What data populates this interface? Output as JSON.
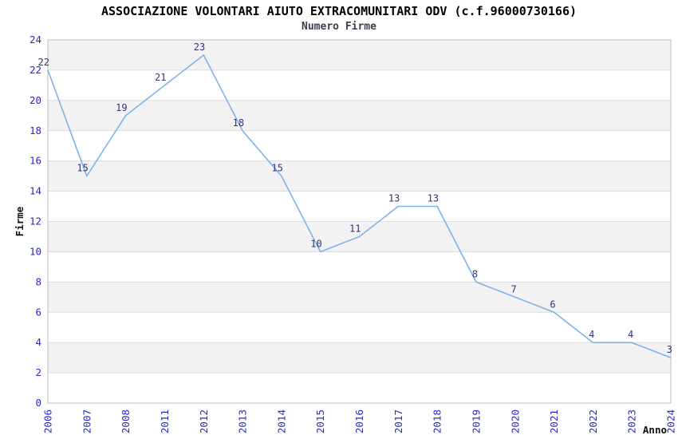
{
  "chart_data": {
    "type": "line",
    "title": "ASSOCIAZIONE VOLONTARI AIUTO EXTRACOMUNITARI ODV (c.f.96000730166)",
    "subtitle": "Numero Firme",
    "xlabel": "Anno",
    "ylabel": "Firme",
    "categories": [
      "2006",
      "2007",
      "2008",
      "2011",
      "2012",
      "2013",
      "2014",
      "2015",
      "2016",
      "2017",
      "2018",
      "2019",
      "2020",
      "2021",
      "2022",
      "2023",
      "2024"
    ],
    "values": [
      22,
      15,
      19,
      21,
      23,
      18,
      15,
      10,
      11,
      13,
      13,
      8,
      7,
      6,
      4,
      4,
      3
    ],
    "ylim": [
      0,
      24
    ],
    "ytick_step": 2,
    "grid": "horizontal-bands",
    "legend": "none",
    "colors": {
      "line": "#7fb2e8",
      "band_gray": "#f2f2f2",
      "gridline": "#dcdcdc",
      "frame": "#c9c9c9",
      "tick_label": "#2828cc",
      "data_label": "#32327d",
      "title": "#000000",
      "subtitle": "#3c3c50",
      "axis_title": "#111111"
    }
  }
}
